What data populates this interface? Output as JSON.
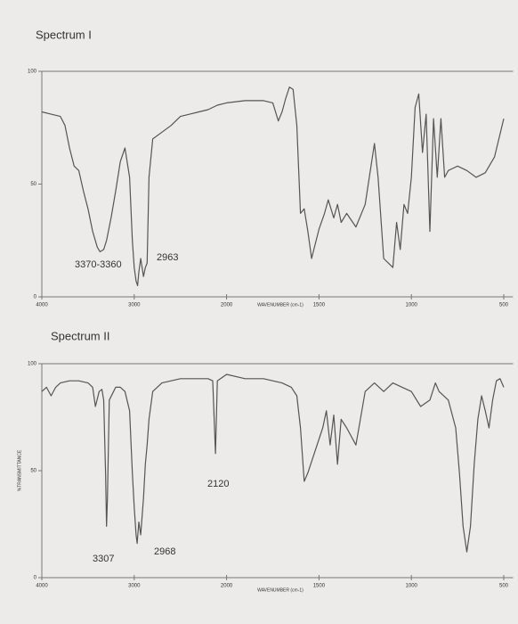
{
  "chart_data": [
    {
      "type": "line",
      "title": "Spectrum I",
      "xlabel": "WAVENUMBER (cm-1)",
      "annotations": [
        "3370-3360",
        "2963"
      ],
      "color": "#555555",
      "xlim": [
        4000,
        450
      ],
      "xticks": [
        4000,
        3000,
        2000,
        1500,
        1000,
        500
      ],
      "ylim": [
        0,
        100
      ],
      "yticks": [
        0,
        50,
        100
      ],
      "x": [
        4000,
        3900,
        3800,
        3750,
        3700,
        3650,
        3600,
        3550,
        3500,
        3450,
        3400,
        3370,
        3330,
        3300,
        3250,
        3200,
        3150,
        3100,
        3050,
        3020,
        3000,
        2980,
        2963,
        2950,
        2930,
        2900,
        2880,
        2860,
        2840,
        2800,
        2700,
        2600,
        2500,
        2400,
        2300,
        2200,
        2100,
        2000,
        1900,
        1800,
        1750,
        1720,
        1700,
        1680,
        1660,
        1640,
        1620,
        1600,
        1580,
        1560,
        1540,
        1500,
        1470,
        1450,
        1420,
        1400,
        1380,
        1350,
        1300,
        1250,
        1200,
        1180,
        1150,
        1100,
        1080,
        1060,
        1040,
        1020,
        1000,
        980,
        960,
        940,
        920,
        900,
        880,
        860,
        840,
        820,
        800,
        750,
        700,
        650,
        600,
        550,
        500
      ],
      "values": [
        82,
        81,
        80,
        76,
        66,
        58,
        56,
        47,
        39,
        29,
        22,
        20,
        21,
        25,
        35,
        47,
        60,
        66,
        53,
        25,
        13,
        7,
        5,
        11,
        17,
        9,
        13,
        15,
        53,
        70,
        73,
        76,
        80,
        81,
        82,
        83,
        85,
        86,
        87,
        87,
        86,
        78,
        82,
        88,
        93,
        92,
        76,
        37,
        39,
        29,
        17,
        30,
        37,
        43,
        35,
        41,
        33,
        37,
        31,
        41,
        68,
        53,
        17,
        13,
        33,
        21,
        41,
        37,
        53,
        84,
        90,
        64,
        81,
        29,
        79,
        53,
        79,
        53,
        56,
        58,
        56,
        53,
        55,
        62,
        79
      ]
    },
    {
      "type": "line",
      "title": "Spectrum II",
      "xlabel": "WAVENUMBER (cm-1)",
      "ylabel": "%TRANSMITTANCE",
      "annotations": [
        "3307",
        "2968",
        "2120"
      ],
      "color": "#555555",
      "xlim": [
        4000,
        450
      ],
      "xticks": [
        4000,
        3000,
        2000,
        1500,
        1000,
        500
      ],
      "ylim": [
        0,
        100
      ],
      "yticks": [
        0,
        50,
        100
      ],
      "x": [
        4000,
        3950,
        3900,
        3850,
        3800,
        3700,
        3600,
        3500,
        3450,
        3420,
        3380,
        3350,
        3330,
        3310,
        3300,
        3290,
        3270,
        3200,
        3150,
        3100,
        3050,
        3020,
        3000,
        2980,
        2968,
        2950,
        2930,
        2900,
        2880,
        2860,
        2840,
        2800,
        2700,
        2500,
        2300,
        2200,
        2150,
        2120,
        2100,
        2000,
        1900,
        1800,
        1700,
        1650,
        1620,
        1600,
        1580,
        1560,
        1480,
        1460,
        1440,
        1420,
        1400,
        1380,
        1350,
        1300,
        1250,
        1200,
        1150,
        1100,
        1050,
        1000,
        950,
        900,
        870,
        850,
        800,
        760,
        740,
        720,
        700,
        680,
        660,
        640,
        620,
        600,
        580,
        560,
        540,
        520,
        500
      ],
      "values": [
        87,
        89,
        85,
        89,
        91,
        92,
        92,
        91,
        89,
        80,
        87,
        88,
        83,
        49,
        24,
        37,
        83,
        89,
        89,
        87,
        78,
        49,
        33,
        20,
        16,
        26,
        20,
        37,
        53,
        62,
        74,
        87,
        91,
        93,
        93,
        93,
        92,
        58,
        92,
        95,
        93,
        93,
        91,
        89,
        85,
        70,
        45,
        49,
        70,
        78,
        62,
        76,
        53,
        74,
        70,
        62,
        87,
        91,
        87,
        91,
        89,
        87,
        80,
        83,
        91,
        87,
        83,
        70,
        49,
        24,
        12,
        24,
        53,
        74,
        85,
        78,
        70,
        83,
        92,
        93,
        89
      ]
    }
  ]
}
